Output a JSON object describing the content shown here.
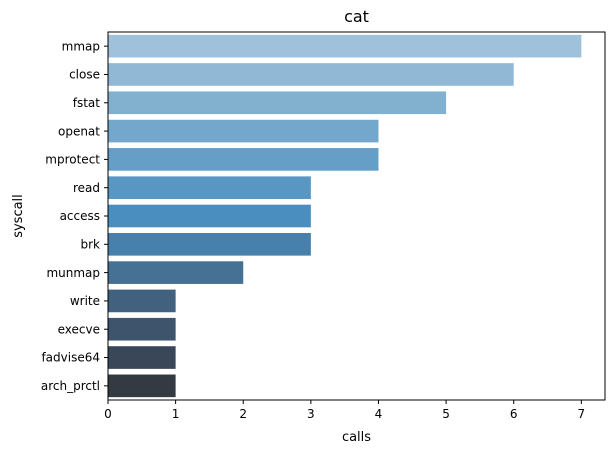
{
  "chart_data": {
    "type": "bar",
    "orientation": "horizontal",
    "title": "cat",
    "xlabel": "calls",
    "ylabel": "syscall",
    "xlim": [
      0,
      7.35
    ],
    "xticks": [
      0,
      1,
      2,
      3,
      4,
      5,
      6,
      7
    ],
    "grid": false,
    "legend": "none",
    "categories": [
      "mmap",
      "close",
      "fstat",
      "openat",
      "mprotect",
      "read",
      "access",
      "brk",
      "munmap",
      "write",
      "execve",
      "fadvise64",
      "arch_prctl"
    ],
    "values": [
      7,
      6,
      5,
      4,
      4,
      3,
      3,
      3,
      2,
      1,
      1,
      1,
      1
    ],
    "colors": [
      "#9fc1dc",
      "#91b9d6",
      "#82b1d0",
      "#73a8cc",
      "#659fc8",
      "#5897c4",
      "#4a8ec0",
      "#4780ab",
      "#457194",
      "#41617e",
      "#3d546c",
      "#3a4758",
      "#343a42"
    ]
  }
}
